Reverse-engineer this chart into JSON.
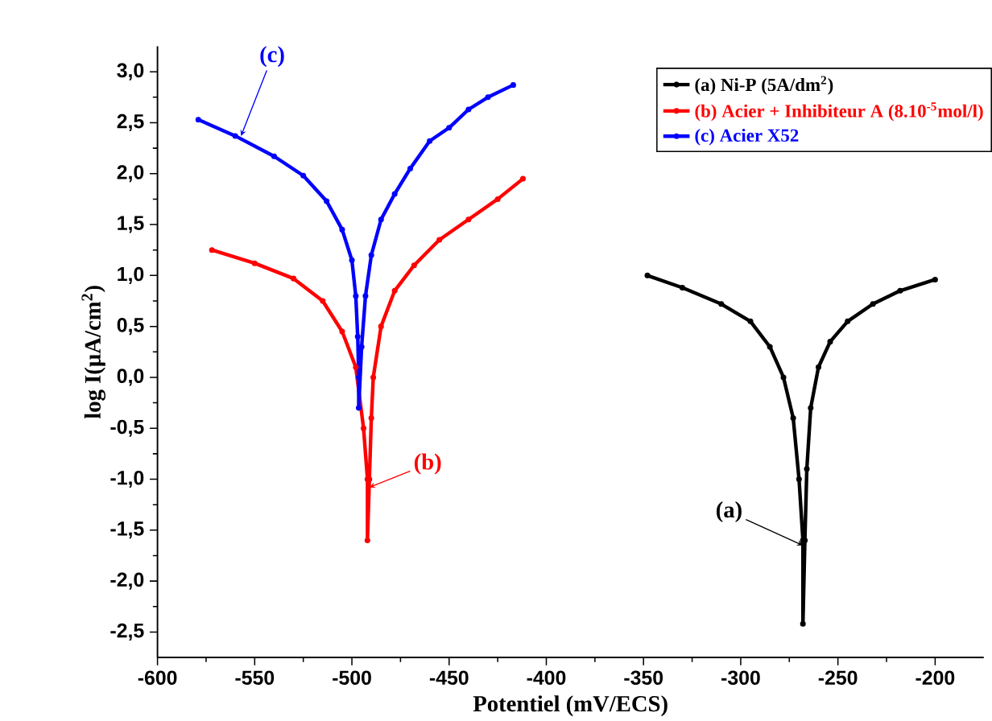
{
  "chart_data": {
    "type": "line",
    "xlabel": "Potentiel (mV/ECS)",
    "ylabel": "log I(µA/cm$^{2}$)",
    "xlim": [
      -600,
      -175
    ],
    "ylim": [
      -2.75,
      3.25
    ],
    "xticks": [
      -600,
      -550,
      -500,
      -450,
      -400,
      -350,
      -300,
      -250,
      -200
    ],
    "yticks": [
      {
        "value": -2.5,
        "label": "-2,5"
      },
      {
        "value": -2,
        "label": "-2,0"
      },
      {
        "value": -1.5,
        "label": "-1,5"
      },
      {
        "value": -1,
        "label": "-1,0"
      },
      {
        "value": -0.5,
        "label": "-0,5"
      },
      {
        "value": 0,
        "label": "0,0"
      },
      {
        "value": 0.5,
        "label": "0,5"
      },
      {
        "value": 1,
        "label": "1,0"
      },
      {
        "value": 1.5,
        "label": "1,5"
      },
      {
        "value": 2,
        "label": "2,0"
      },
      {
        "value": 2.5,
        "label": "2,5"
      },
      {
        "value": 3,
        "label": "3,0"
      }
    ],
    "grid": false,
    "legend": "top right",
    "marker": "circle",
    "line_style": "solid",
    "series": [
      {
        "name": "(a) Ni-P (5A/dm$^{2}$)",
        "color": "#000000",
        "x": [
          -348,
          -330,
          -310,
          -295,
          -285,
          -278,
          -273,
          -270,
          -268,
          -268,
          -267,
          -266,
          -264,
          -260,
          -254,
          -245,
          -232,
          -218,
          -200
        ],
        "values": [
          1.0,
          0.88,
          0.72,
          0.55,
          0.3,
          0.0,
          -0.4,
          -1.0,
          -1.6,
          -2.42,
          -1.6,
          -0.9,
          -0.3,
          0.1,
          0.35,
          0.55,
          0.72,
          0.85,
          0.96
        ]
      },
      {
        "name": "(b) Acier +  Inhibiteur A (8.10$^{-5}$mol/l)",
        "color": "#ff0000",
        "x": [
          -572,
          -550,
          -530,
          -515,
          -505,
          -498,
          -494,
          -492,
          -492,
          -491,
          -490,
          -489,
          -485,
          -478,
          -468,
          -455,
          -440,
          -425,
          -412
        ],
        "values": [
          1.25,
          1.12,
          0.97,
          0.75,
          0.45,
          0.1,
          -0.5,
          -1.0,
          -1.6,
          -1.0,
          -0.4,
          0.0,
          0.5,
          0.85,
          1.1,
          1.35,
          1.55,
          1.75,
          1.95
        ]
      },
      {
        "name": "(c) Acier  X52",
        "color": "#0000ff",
        "x": [
          -579,
          -560,
          -540,
          -525,
          -513,
          -505,
          -500,
          -498,
          -497,
          -496.5,
          -496.5,
          -495,
          -493,
          -490,
          -485,
          -478,
          -470,
          -460,
          -450,
          -440,
          -430,
          -417
        ],
        "values": [
          2.53,
          2.37,
          2.17,
          1.98,
          1.73,
          1.45,
          1.15,
          0.8,
          0.4,
          0.0,
          -0.3,
          0.3,
          0.8,
          1.2,
          1.55,
          1.8,
          2.05,
          2.32,
          2.45,
          2.63,
          2.75,
          2.87
        ]
      }
    ],
    "annotations": [
      {
        "text": "(a)",
        "x": -268,
        "y": -1.65
      },
      {
        "text": "(b)",
        "x": -491,
        "y": -1.08
      },
      {
        "text": "(c)",
        "x": -557,
        "y": 2.37
      }
    ]
  }
}
